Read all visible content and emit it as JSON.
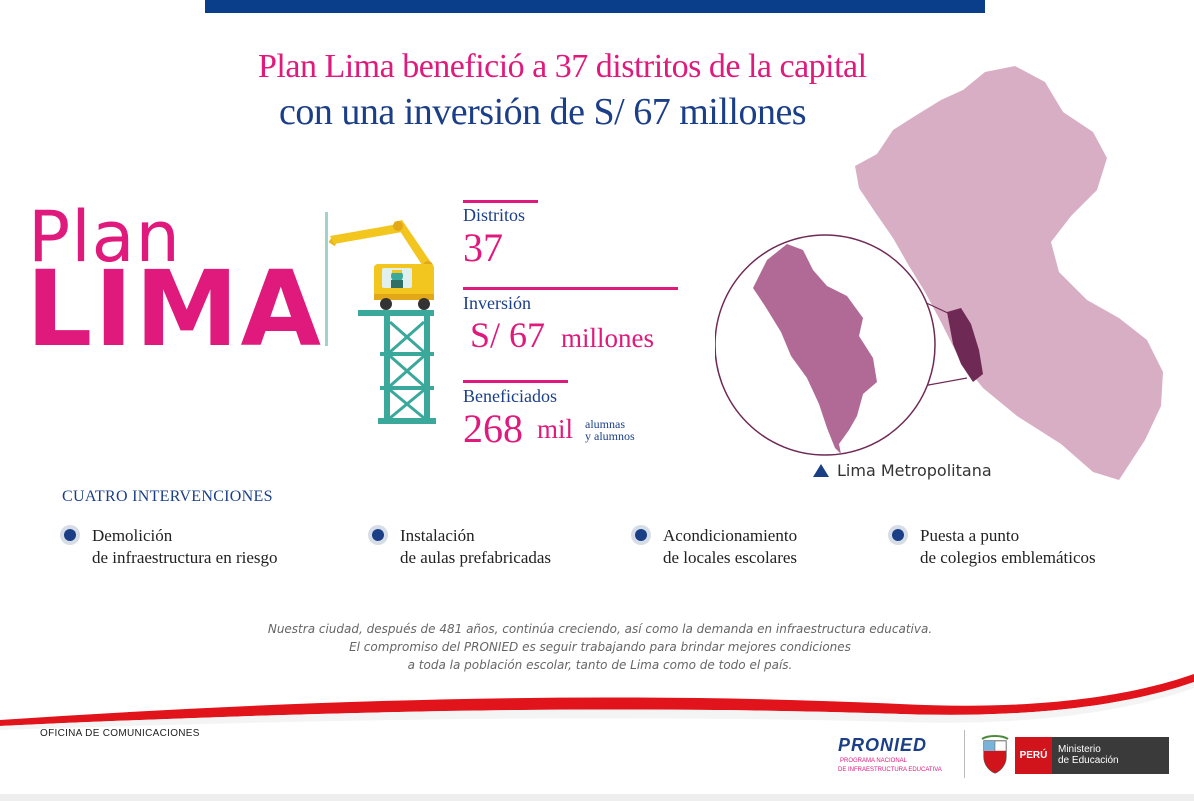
{
  "headline": {
    "line1": "Plan Lima benefició a 37 distritos de la capital",
    "line2": "con una inversión de S/ 67 millones"
  },
  "brand": {
    "plan": "Plan",
    "lima": "LIMA"
  },
  "stats": {
    "distritos": {
      "label": "Distritos",
      "value": "37"
    },
    "inversion": {
      "label": "Inversión",
      "currency": "S/ 67",
      "unit": "millones"
    },
    "beneficiados": {
      "label": "Beneficiados",
      "value": "268",
      "unit": "mil",
      "detail_1": "alumnas",
      "detail_2": "y alumnos"
    }
  },
  "map": {
    "legend": "Lima Metropolitana"
  },
  "interventions": {
    "title": "CUATRO INTERVENCIONES",
    "items": [
      {
        "line1": "Demolición",
        "line2": "de infraestructura en riesgo"
      },
      {
        "line1": "Instalación",
        "line2": "de aulas prefabricadas"
      },
      {
        "line1": "Acondicionamiento",
        "line2": "de locales escolares"
      },
      {
        "line1": "Puesta a punto",
        "line2": "de colegios emblemáticos"
      }
    ]
  },
  "footnote": {
    "line1": "Nuestra ciudad, después de 481 años, continúa creciendo, así como la demanda en infraestructura educativa.",
    "line2": "El compromiso del PRONIED es seguir trabajando para brindar mejores condiciones",
    "line3": "a toda la población escolar, tanto de Lima como de todo el país."
  },
  "footer": {
    "office": "OFICINA DE COMUNICACIONES",
    "pronied": "PRONIED",
    "pronied_sub_1": "PROGRAMA NACIONAL",
    "pronied_sub_2": "DE INFRAESTRUCTURA EDUCATIVA",
    "peru": "PERÚ",
    "ministerio_1": "Ministerio",
    "ministerio_2": "de Educación"
  },
  "colors": {
    "magenta": "#e0197c",
    "navy": "#1b3f87",
    "teal": "#3aa89a",
    "map_light": "#d8aec4",
    "map_mid": "#b06a95",
    "map_dark": "#6e2a54"
  }
}
